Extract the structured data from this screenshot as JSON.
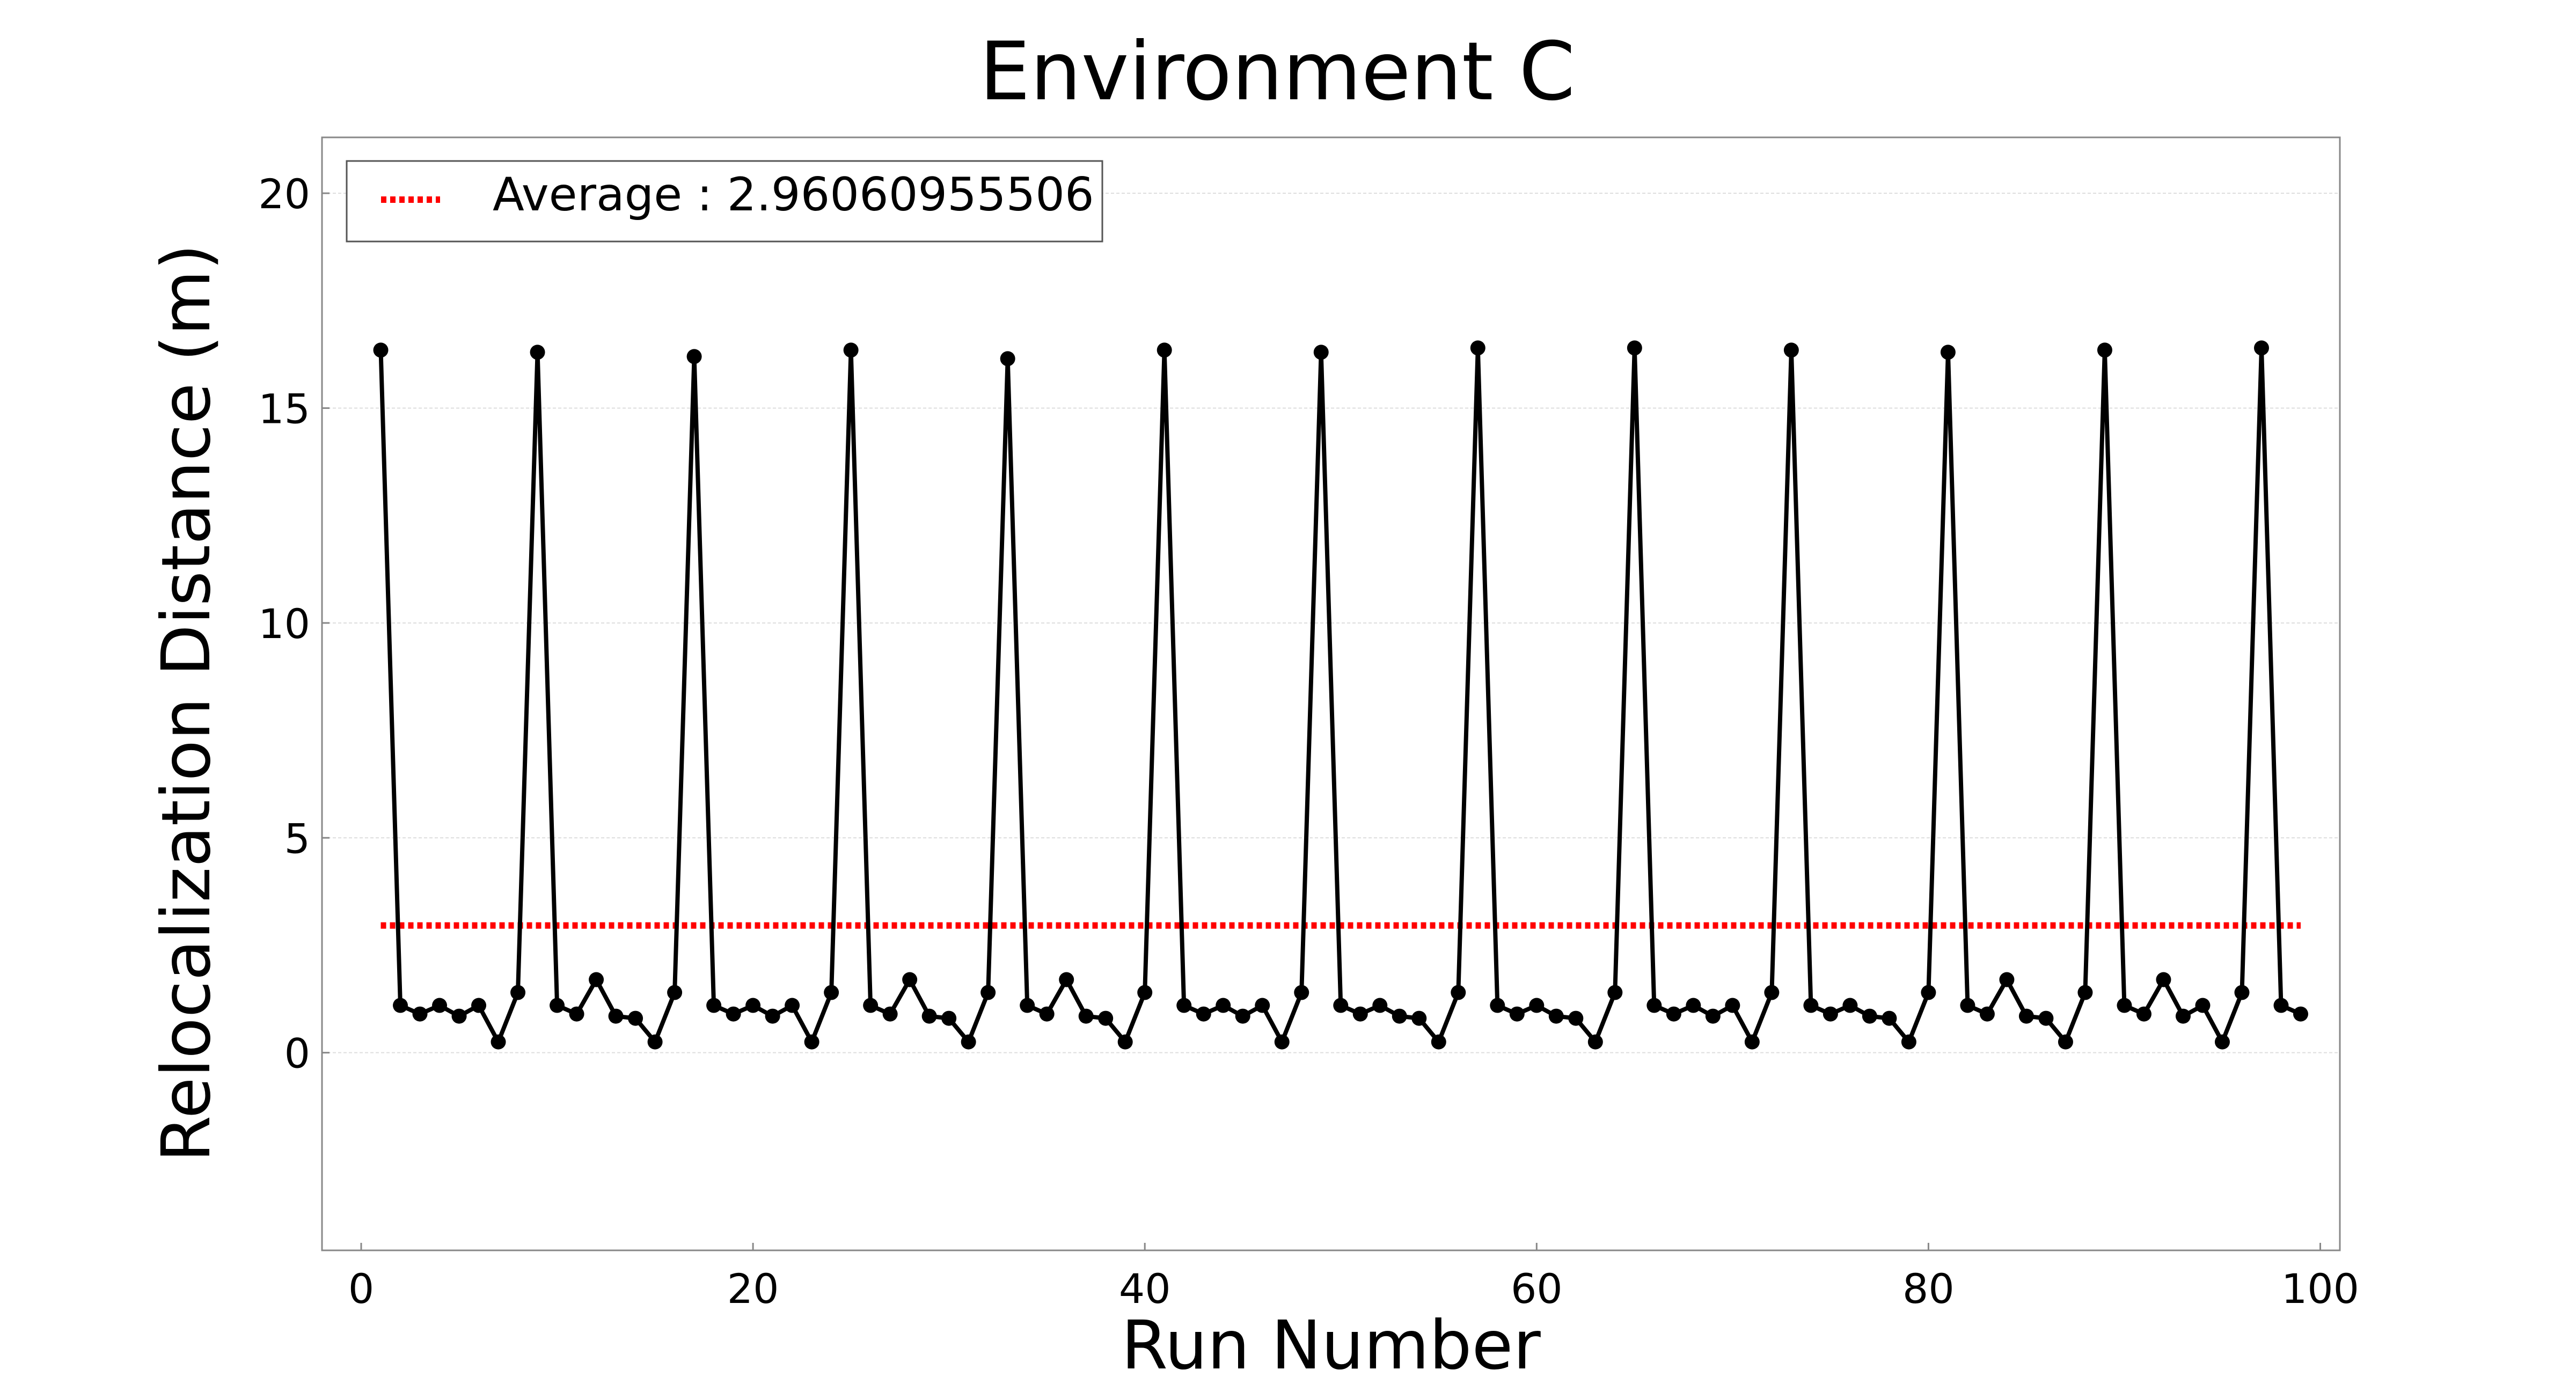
{
  "chart_data": {
    "type": "line",
    "title": "Environment C",
    "xlabel": "Run Number",
    "ylabel": "Relocalization Distance (m)",
    "xlim": [
      -2,
      101
    ],
    "ylim": [
      -4.6,
      21.3
    ],
    "xticks": [
      0,
      20,
      40,
      60,
      80,
      100
    ],
    "xtick_labels": [
      "0",
      "20",
      "40",
      "60",
      "80",
      "100"
    ],
    "yticks": [
      0,
      5,
      10,
      15,
      20
    ],
    "ytick_labels": [
      "0",
      "5",
      "10",
      "15",
      "20"
    ],
    "grid": true,
    "legend_position": "top-left",
    "series": [
      {
        "name": "",
        "color": "#000000",
        "marker": "circle",
        "x": [
          1,
          2,
          3,
          4,
          5,
          6,
          7,
          8,
          9,
          10,
          11,
          12,
          13,
          14,
          15,
          16,
          17,
          18,
          19,
          20,
          21,
          22,
          23,
          24,
          25,
          26,
          27,
          28,
          29,
          30,
          31,
          32,
          33,
          34,
          35,
          36,
          37,
          38,
          39,
          40,
          41,
          42,
          43,
          44,
          45,
          46,
          47,
          48,
          49,
          50,
          51,
          52,
          53,
          54,
          55,
          56,
          57,
          58,
          59,
          60,
          61,
          62,
          63,
          64,
          65,
          66,
          67,
          68,
          69,
          70,
          71,
          72,
          73,
          74,
          75,
          76,
          77,
          78,
          79,
          80,
          81,
          82,
          83,
          84,
          85,
          86,
          87,
          88,
          89,
          90,
          91,
          92,
          93,
          94,
          95,
          96,
          97,
          98,
          99
        ],
        "values": [
          16.35,
          1.1,
          0.9,
          1.1,
          0.85,
          1.1,
          0.25,
          1.4,
          16.3,
          1.1,
          0.9,
          1.7,
          0.85,
          0.8,
          0.25,
          1.4,
          16.2,
          1.1,
          0.9,
          1.1,
          0.85,
          1.1,
          0.25,
          1.4,
          16.35,
          1.1,
          0.9,
          1.7,
          0.85,
          0.8,
          0.25,
          1.4,
          16.15,
          1.1,
          0.9,
          1.7,
          0.85,
          0.8,
          0.25,
          1.4,
          16.35,
          1.1,
          0.9,
          1.1,
          0.85,
          1.1,
          0.25,
          1.4,
          16.3,
          1.1,
          0.9,
          1.1,
          0.85,
          0.8,
          0.25,
          1.4,
          16.4,
          1.1,
          0.9,
          1.1,
          0.85,
          0.8,
          0.25,
          1.4,
          16.4,
          1.1,
          0.9,
          1.1,
          0.85,
          1.1,
          0.25,
          1.4,
          16.35,
          1.1,
          0.9,
          1.1,
          0.85,
          0.8,
          0.25,
          1.4,
          16.3,
          1.1,
          0.9,
          1.7,
          0.85,
          0.8,
          0.25,
          1.4,
          16.35,
          1.1,
          0.9,
          1.7,
          0.85,
          1.1,
          0.25,
          1.4,
          16.4,
          1.1,
          0.9
        ]
      },
      {
        "name": "Average : 2.96060955506",
        "color": "#ff0000",
        "style": "dotted",
        "x": [
          1,
          99
        ],
        "values": [
          2.96060955506,
          2.96060955506
        ]
      }
    ]
  }
}
